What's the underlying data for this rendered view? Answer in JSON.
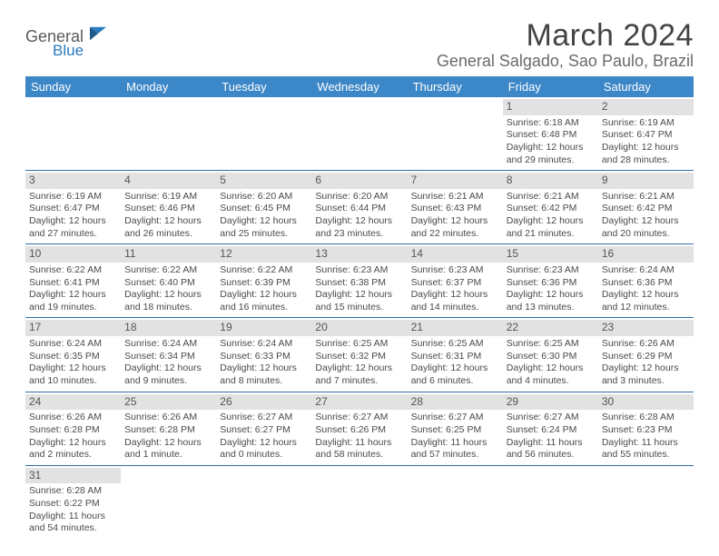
{
  "logo": {
    "line1": "General",
    "line2": "Blue"
  },
  "title": "March 2024",
  "location": "General Salgado, Sao Paulo, Brazil",
  "colors": {
    "header_bg": "#3c87c7",
    "header_text": "#ffffff",
    "row_divider": "#2f6fa8",
    "daynum_bg": "#e2e2e2",
    "text": "#4a4a4a"
  },
  "day_headers": [
    "Sunday",
    "Monday",
    "Tuesday",
    "Wednesday",
    "Thursday",
    "Friday",
    "Saturday"
  ],
  "weeks": [
    [
      null,
      null,
      null,
      null,
      null,
      {
        "n": "1",
        "sr": "Sunrise: 6:18 AM",
        "ss": "Sunset: 6:48 PM",
        "d1": "Daylight: 12 hours",
        "d2": "and 29 minutes."
      },
      {
        "n": "2",
        "sr": "Sunrise: 6:19 AM",
        "ss": "Sunset: 6:47 PM",
        "d1": "Daylight: 12 hours",
        "d2": "and 28 minutes."
      }
    ],
    [
      {
        "n": "3",
        "sr": "Sunrise: 6:19 AM",
        "ss": "Sunset: 6:47 PM",
        "d1": "Daylight: 12 hours",
        "d2": "and 27 minutes."
      },
      {
        "n": "4",
        "sr": "Sunrise: 6:19 AM",
        "ss": "Sunset: 6:46 PM",
        "d1": "Daylight: 12 hours",
        "d2": "and 26 minutes."
      },
      {
        "n": "5",
        "sr": "Sunrise: 6:20 AM",
        "ss": "Sunset: 6:45 PM",
        "d1": "Daylight: 12 hours",
        "d2": "and 25 minutes."
      },
      {
        "n": "6",
        "sr": "Sunrise: 6:20 AM",
        "ss": "Sunset: 6:44 PM",
        "d1": "Daylight: 12 hours",
        "d2": "and 23 minutes."
      },
      {
        "n": "7",
        "sr": "Sunrise: 6:21 AM",
        "ss": "Sunset: 6:43 PM",
        "d1": "Daylight: 12 hours",
        "d2": "and 22 minutes."
      },
      {
        "n": "8",
        "sr": "Sunrise: 6:21 AM",
        "ss": "Sunset: 6:42 PM",
        "d1": "Daylight: 12 hours",
        "d2": "and 21 minutes."
      },
      {
        "n": "9",
        "sr": "Sunrise: 6:21 AM",
        "ss": "Sunset: 6:42 PM",
        "d1": "Daylight: 12 hours",
        "d2": "and 20 minutes."
      }
    ],
    [
      {
        "n": "10",
        "sr": "Sunrise: 6:22 AM",
        "ss": "Sunset: 6:41 PM",
        "d1": "Daylight: 12 hours",
        "d2": "and 19 minutes."
      },
      {
        "n": "11",
        "sr": "Sunrise: 6:22 AM",
        "ss": "Sunset: 6:40 PM",
        "d1": "Daylight: 12 hours",
        "d2": "and 18 minutes."
      },
      {
        "n": "12",
        "sr": "Sunrise: 6:22 AM",
        "ss": "Sunset: 6:39 PM",
        "d1": "Daylight: 12 hours",
        "d2": "and 16 minutes."
      },
      {
        "n": "13",
        "sr": "Sunrise: 6:23 AM",
        "ss": "Sunset: 6:38 PM",
        "d1": "Daylight: 12 hours",
        "d2": "and 15 minutes."
      },
      {
        "n": "14",
        "sr": "Sunrise: 6:23 AM",
        "ss": "Sunset: 6:37 PM",
        "d1": "Daylight: 12 hours",
        "d2": "and 14 minutes."
      },
      {
        "n": "15",
        "sr": "Sunrise: 6:23 AM",
        "ss": "Sunset: 6:36 PM",
        "d1": "Daylight: 12 hours",
        "d2": "and 13 minutes."
      },
      {
        "n": "16",
        "sr": "Sunrise: 6:24 AM",
        "ss": "Sunset: 6:36 PM",
        "d1": "Daylight: 12 hours",
        "d2": "and 12 minutes."
      }
    ],
    [
      {
        "n": "17",
        "sr": "Sunrise: 6:24 AM",
        "ss": "Sunset: 6:35 PM",
        "d1": "Daylight: 12 hours",
        "d2": "and 10 minutes."
      },
      {
        "n": "18",
        "sr": "Sunrise: 6:24 AM",
        "ss": "Sunset: 6:34 PM",
        "d1": "Daylight: 12 hours",
        "d2": "and 9 minutes."
      },
      {
        "n": "19",
        "sr": "Sunrise: 6:24 AM",
        "ss": "Sunset: 6:33 PM",
        "d1": "Daylight: 12 hours",
        "d2": "and 8 minutes."
      },
      {
        "n": "20",
        "sr": "Sunrise: 6:25 AM",
        "ss": "Sunset: 6:32 PM",
        "d1": "Daylight: 12 hours",
        "d2": "and 7 minutes."
      },
      {
        "n": "21",
        "sr": "Sunrise: 6:25 AM",
        "ss": "Sunset: 6:31 PM",
        "d1": "Daylight: 12 hours",
        "d2": "and 6 minutes."
      },
      {
        "n": "22",
        "sr": "Sunrise: 6:25 AM",
        "ss": "Sunset: 6:30 PM",
        "d1": "Daylight: 12 hours",
        "d2": "and 4 minutes."
      },
      {
        "n": "23",
        "sr": "Sunrise: 6:26 AM",
        "ss": "Sunset: 6:29 PM",
        "d1": "Daylight: 12 hours",
        "d2": "and 3 minutes."
      }
    ],
    [
      {
        "n": "24",
        "sr": "Sunrise: 6:26 AM",
        "ss": "Sunset: 6:28 PM",
        "d1": "Daylight: 12 hours",
        "d2": "and 2 minutes."
      },
      {
        "n": "25",
        "sr": "Sunrise: 6:26 AM",
        "ss": "Sunset: 6:28 PM",
        "d1": "Daylight: 12 hours",
        "d2": "and 1 minute."
      },
      {
        "n": "26",
        "sr": "Sunrise: 6:27 AM",
        "ss": "Sunset: 6:27 PM",
        "d1": "Daylight: 12 hours",
        "d2": "and 0 minutes."
      },
      {
        "n": "27",
        "sr": "Sunrise: 6:27 AM",
        "ss": "Sunset: 6:26 PM",
        "d1": "Daylight: 11 hours",
        "d2": "and 58 minutes."
      },
      {
        "n": "28",
        "sr": "Sunrise: 6:27 AM",
        "ss": "Sunset: 6:25 PM",
        "d1": "Daylight: 11 hours",
        "d2": "and 57 minutes."
      },
      {
        "n": "29",
        "sr": "Sunrise: 6:27 AM",
        "ss": "Sunset: 6:24 PM",
        "d1": "Daylight: 11 hours",
        "d2": "and 56 minutes."
      },
      {
        "n": "30",
        "sr": "Sunrise: 6:28 AM",
        "ss": "Sunset: 6:23 PM",
        "d1": "Daylight: 11 hours",
        "d2": "and 55 minutes."
      }
    ],
    [
      {
        "n": "31",
        "sr": "Sunrise: 6:28 AM",
        "ss": "Sunset: 6:22 PM",
        "d1": "Daylight: 11 hours",
        "d2": "and 54 minutes."
      },
      null,
      null,
      null,
      null,
      null,
      null
    ]
  ]
}
